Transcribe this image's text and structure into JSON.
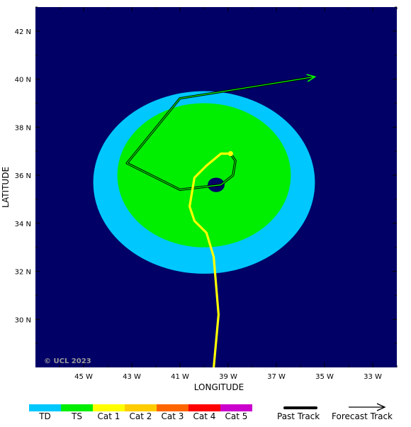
{
  "map": {
    "x_axis": {
      "title": "LONGITUDE",
      "ticks": [
        {
          "lon": -45,
          "label": "45 W"
        },
        {
          "lon": -43,
          "label": "43 W"
        },
        {
          "lon": -41,
          "label": "41 W"
        },
        {
          "lon": -39,
          "label": "39 W"
        },
        {
          "lon": -37,
          "label": "37 W"
        },
        {
          "lon": -35,
          "label": "35 W"
        },
        {
          "lon": -33,
          "label": "33 W"
        }
      ]
    },
    "y_axis": {
      "title": "LATITUDE",
      "ticks": [
        {
          "lat": 42,
          "label": "42 N"
        },
        {
          "lat": 40,
          "label": "40 N"
        },
        {
          "lat": 38,
          "label": "38 N"
        },
        {
          "lat": 36,
          "label": "36 N"
        },
        {
          "lat": 34,
          "label": "34 N"
        },
        {
          "lat": 32,
          "label": "32 N"
        },
        {
          "lat": 30,
          "label": "30 N"
        }
      ]
    },
    "extent": {
      "lon_min": -47.0,
      "lon_max": -32.0,
      "lat_min": 28.0,
      "lat_max": 43.0
    },
    "credit": "© UCL 2023",
    "colors": {
      "ocean": "#000066",
      "td": "#00c8ff",
      "ts": "#00ee00",
      "past_track": "#ffff00",
      "forecast_track": "#00ff00",
      "eye": "#000066"
    },
    "wind_field": {
      "td": {
        "center_lon": -40.0,
        "center_lat": 35.7,
        "radius_lon": 4.6,
        "radius_lat": 3.8
      },
      "ts": {
        "center_lon": -40.0,
        "center_lat": 36.0,
        "radius_lon": 3.6,
        "radius_lat": 3.0
      },
      "eye": {
        "center_lon": -39.5,
        "center_lat": 35.6,
        "radius_lon": 0.35,
        "radius_lat": 0.3
      }
    },
    "past_track": [
      [
        -39.6,
        28.0
      ],
      [
        -39.4,
        30.2
      ],
      [
        -39.6,
        32.6
      ],
      [
        -39.9,
        33.6
      ],
      [
        -40.4,
        34.1
      ],
      [
        -40.6,
        34.7
      ],
      [
        -40.4,
        35.9
      ],
      [
        -39.9,
        36.4
      ],
      [
        -39.3,
        36.9
      ],
      [
        -38.9,
        36.9
      ]
    ],
    "current_position": [
      -38.9,
      36.9
    ],
    "forecast_track": [
      [
        -38.9,
        36.9
      ],
      [
        -38.7,
        36.6
      ],
      [
        -38.8,
        36.0
      ],
      [
        -39.3,
        35.6
      ],
      [
        -41.0,
        35.4
      ],
      [
        -43.2,
        36.5
      ],
      [
        -41.0,
        39.2
      ],
      [
        -35.4,
        40.1
      ]
    ]
  },
  "legend": {
    "scale": [
      {
        "label": "TD",
        "color": "#00c8ff"
      },
      {
        "label": "TS",
        "color": "#00ee00"
      },
      {
        "label": "Cat 1",
        "color": "#ffff00"
      },
      {
        "label": "Cat 2",
        "color": "#ffcc00"
      },
      {
        "label": "Cat 3",
        "color": "#ff6600"
      },
      {
        "label": "Cat 4",
        "color": "#ff0000"
      },
      {
        "label": "Cat 5",
        "color": "#cc00cc"
      }
    ],
    "past_track_label": "Past Track",
    "forecast_track_label": "Forecast Track"
  }
}
